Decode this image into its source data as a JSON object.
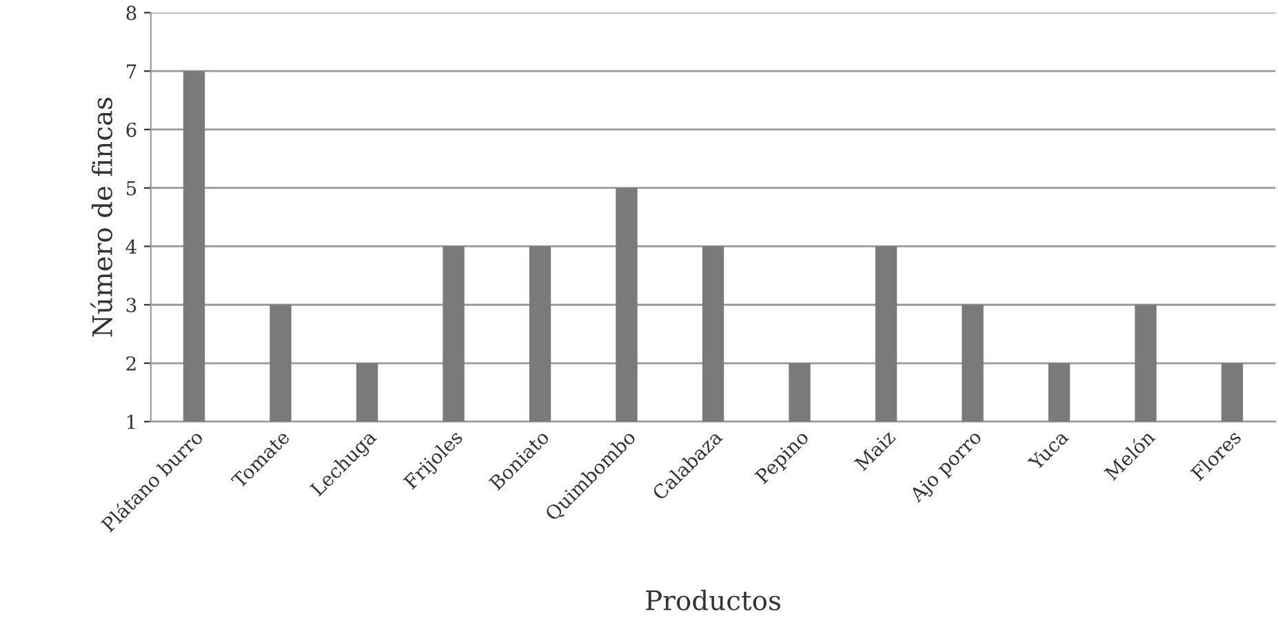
{
  "chart_data": {
    "type": "bar",
    "xlabel": "Productos",
    "ylabel": "Número de fincas",
    "categories": [
      "Plátano burro",
      "Tomate",
      "Lechuga",
      "Frijoles",
      "Boniato",
      "Quimbombo",
      "Calabaza",
      "Pepino",
      "Maiz",
      "Ajo porro",
      "Yuca",
      "Melón",
      "Flores"
    ],
    "values": [
      7,
      3,
      2,
      4,
      4,
      5,
      4,
      2,
      4,
      3,
      2,
      3,
      2
    ],
    "color": "#7a7a7a",
    "ylim": [
      1,
      8
    ],
    "yticks": [
      1,
      2,
      3,
      4,
      5,
      6,
      7,
      8
    ],
    "grid": "y",
    "legend": false
  }
}
